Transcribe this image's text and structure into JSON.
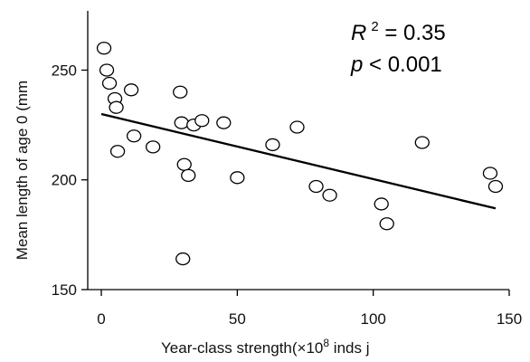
{
  "chart_data": {
    "type": "scatter",
    "title": "",
    "xlabel": "Year-class strength(×10",
    "xlabel_sup": "8",
    "xlabel_tail": " inds  j",
    "ylabel": "Mean length of age 0  (mm",
    "xlim": [
      -5,
      150
    ],
    "ylim": [
      150,
      277
    ],
    "xticks": [
      0,
      50,
      100,
      150
    ],
    "xtick_labels": [
      "0",
      "50",
      "100",
      "150"
    ],
    "yticks": [
      150,
      200,
      250
    ],
    "ytick_labels": [
      "150",
      "200",
      "250"
    ],
    "grid": false,
    "annotations": {
      "r2_symbol": "R",
      "r2_sup": "2",
      "r2_value": " = 0.35",
      "p_symbol": "p",
      "p_value": " < 0.001"
    },
    "trendline": {
      "x": [
        0,
        145
      ],
      "y": [
        230,
        187
      ]
    },
    "points": [
      {
        "x": 1,
        "y": 260
      },
      {
        "x": 2,
        "y": 250
      },
      {
        "x": 3,
        "y": 244
      },
      {
        "x": 5,
        "y": 237
      },
      {
        "x": 5.5,
        "y": 233
      },
      {
        "x": 6,
        "y": 213
      },
      {
        "x": 11,
        "y": 241
      },
      {
        "x": 12,
        "y": 220
      },
      {
        "x": 19,
        "y": 215
      },
      {
        "x": 29,
        "y": 240
      },
      {
        "x": 29.5,
        "y": 226
      },
      {
        "x": 30.5,
        "y": 207
      },
      {
        "x": 32,
        "y": 202
      },
      {
        "x": 34,
        "y": 225
      },
      {
        "x": 37,
        "y": 227
      },
      {
        "x": 30,
        "y": 164
      },
      {
        "x": 45,
        "y": 226
      },
      {
        "x": 50,
        "y": 201
      },
      {
        "x": 63,
        "y": 216
      },
      {
        "x": 72,
        "y": 224
      },
      {
        "x": 79,
        "y": 197
      },
      {
        "x": 84,
        "y": 193
      },
      {
        "x": 103,
        "y": 189
      },
      {
        "x": 105,
        "y": 180
      },
      {
        "x": 118,
        "y": 217
      },
      {
        "x": 143,
        "y": 203
      },
      {
        "x": 145,
        "y": 197
      }
    ]
  }
}
